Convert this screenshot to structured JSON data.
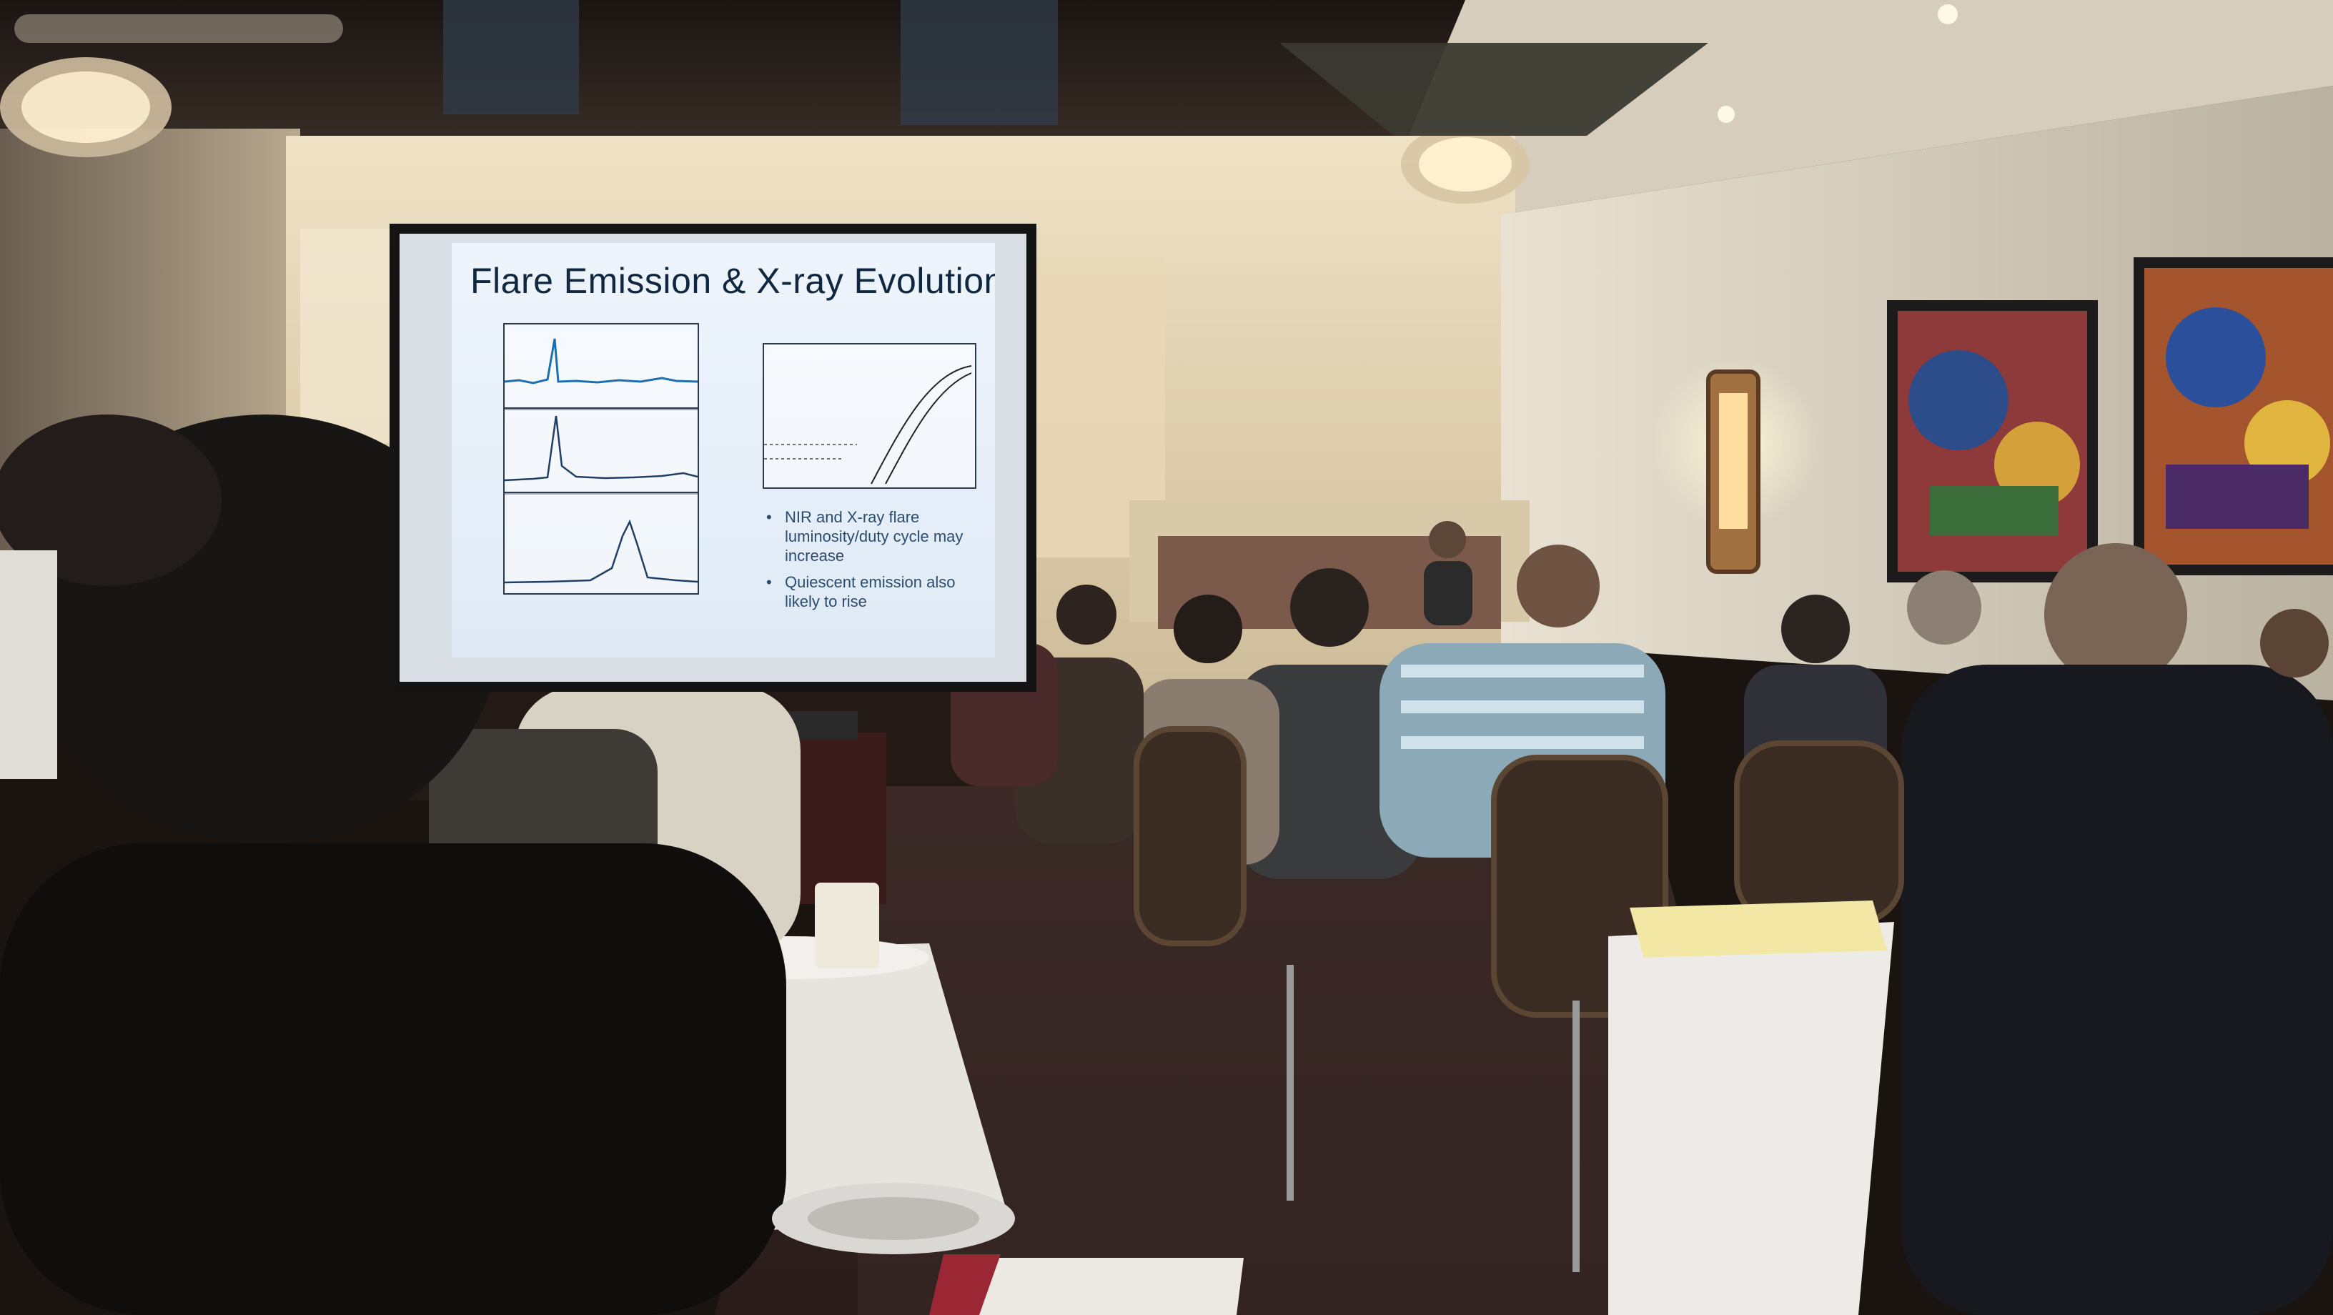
{
  "slide": {
    "title": "Flare Emission & X-ray Evolution",
    "bullets": [
      {
        "text": "NIR and X-ray flare luminosity/duty cycle may increase"
      },
      {
        "text": "Quiescent emission also likely to rise"
      }
    ],
    "bullet_glyph": "•"
  },
  "colors": {
    "slide_background": "#e6eef7",
    "slide_title": "#0f2740",
    "bullet_text": "#2b4c6e",
    "plot_trace": "#1f6fb0",
    "room_wall": "#d9cdb4",
    "carpet": "#3a2a2a"
  }
}
